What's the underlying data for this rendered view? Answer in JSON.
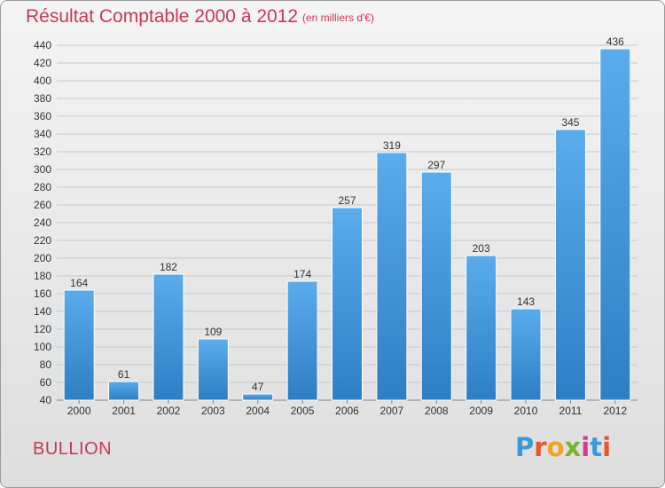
{
  "header": {
    "title": "Résultat Comptable 2000 à 2012",
    "subtitle": "(en milliers d'€)"
  },
  "footer": {
    "location": "BULLION",
    "logo_text": "Proxiti",
    "logo_colors": [
      "#3a9ad9",
      "#e8542b",
      "#f0a320",
      "#7ab32e",
      "#d93a8c",
      "#3a9ad9",
      "#e8542b"
    ]
  },
  "colors": {
    "bar_top": "#5aacec",
    "bar_bottom": "#2e7ec4",
    "grid": "#c8c8c8",
    "title": "#c8385a"
  },
  "chart_data": {
    "type": "bar",
    "title": "Résultat Comptable 2000 à 2012",
    "subtitle": "(en milliers d'€)",
    "categories": [
      "2000",
      "2001",
      "2002",
      "2003",
      "2004",
      "2005",
      "2006",
      "2007",
      "2008",
      "2009",
      "2010",
      "2011",
      "2012"
    ],
    "values": [
      164,
      61,
      182,
      109,
      47,
      174,
      257,
      319,
      297,
      203,
      143,
      345,
      436
    ],
    "ylim": [
      40,
      440
    ],
    "yticks": [
      40,
      60,
      80,
      100,
      120,
      140,
      160,
      180,
      200,
      220,
      240,
      260,
      280,
      300,
      320,
      340,
      360,
      380,
      400,
      420,
      440
    ],
    "grid": true,
    "xlabel": "",
    "ylabel": ""
  }
}
